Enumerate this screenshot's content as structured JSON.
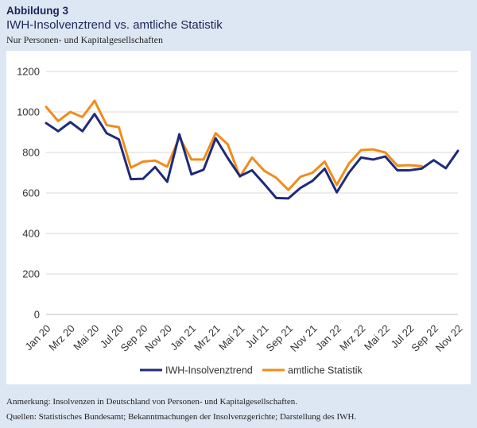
{
  "header": {
    "label": "Abbildung 3",
    "title": "IWH-Insolvenztrend vs. amtliche Statistik",
    "subtitle": "Nur Personen- und Kapitalgesellschaften"
  },
  "footer": {
    "note": "Anmerkung: Insolvenzen in Deutschland von Personen- und Kapitalgesellschaften.",
    "sources": "Quellen: Statistisches Bundesamt; Bekanntmachungen der Insolvenzgerichte; Darstellung des IWH."
  },
  "chart_data": {
    "type": "line",
    "x_tick_labels": [
      "Jan 20",
      "Mrz 20",
      "Mai 20",
      "Jul 20",
      "Sep 20",
      "Nov 20",
      "Jan 21",
      "Mrz 21",
      "Mai 21",
      "Jul 21",
      "Sep 21",
      "Nov 21",
      "Jan 22",
      "Mrz 22",
      "Mai 22",
      "Jul 22",
      "Sep 22",
      "Nov 22"
    ],
    "x_count": 35,
    "ylim": [
      0,
      1200
    ],
    "yticks": [
      0,
      200,
      400,
      600,
      800,
      1000,
      1200
    ],
    "grid": "horizontal",
    "legend_position": "bottom",
    "series": [
      {
        "name": "IWH-Insolvenztrend",
        "color": "#1f2a7a",
        "values": [
          945,
          905,
          950,
          905,
          990,
          895,
          865,
          668,
          670,
          728,
          655,
          890,
          692,
          715,
          870,
          772,
          683,
          712,
          645,
          575,
          573,
          625,
          660,
          720,
          603,
          700,
          775,
          765,
          780,
          712,
          712,
          720,
          762,
          722,
          808
        ]
      },
      {
        "name": "amtliche Statistik",
        "color": "#f08c1a",
        "values": [
          1025,
          955,
          1000,
          975,
          1055,
          935,
          925,
          725,
          755,
          760,
          730,
          875,
          765,
          765,
          895,
          840,
          680,
          775,
          710,
          675,
          615,
          680,
          700,
          755,
          640,
          745,
          812,
          815,
          800,
          735,
          737,
          733,
          null,
          null,
          null
        ]
      }
    ]
  }
}
